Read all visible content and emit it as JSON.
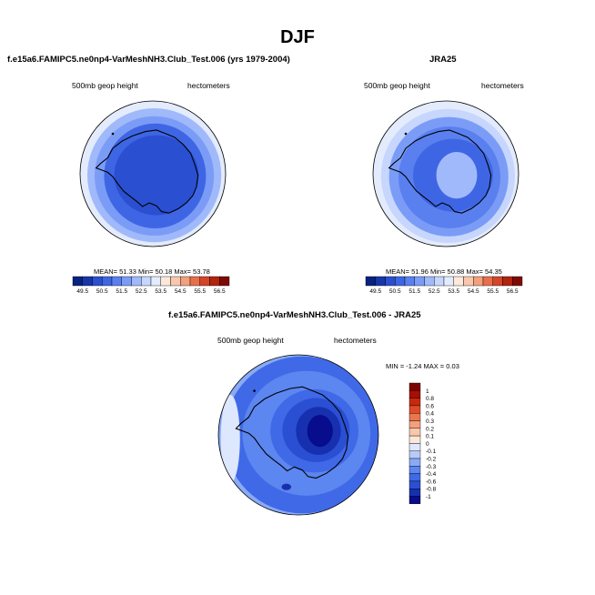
{
  "figure": {
    "title": "DJF"
  },
  "colors": {
    "abs_palette": [
      "#08227f",
      "#1736a8",
      "#2a4fd0",
      "#3e66e4",
      "#5a80ef",
      "#7b9cf6",
      "#a0b9fa",
      "#c6d6fc",
      "#e3ebfd",
      "#fde8da",
      "#f8c8ae",
      "#f2a07e",
      "#e96f4c",
      "#d4452a",
      "#b1240f",
      "#7f0a04"
    ],
    "diff_palette": [
      "#070d8c",
      "#1730b0",
      "#2a4fd3",
      "#3f69e6",
      "#5c86f0",
      "#8aaaf6",
      "#b7cbfa",
      "#dde7fd",
      "#fde6d6",
      "#f9c7ab",
      "#f3a07d",
      "#eb7550",
      "#df4b27",
      "#c9280c",
      "#a80f04",
      "#7a0401"
    ],
    "coast": "#000000",
    "ocean_edge": "#000000"
  },
  "chart_data": [
    {
      "type": "heatmap",
      "panel_title": "f.e15a6.FAMIPC5.ne0np4-VarMeshNH3.Club_Test.006 (yrs 1979-2004)",
      "left_label": "500mb geop height",
      "right_label": "hectometers",
      "stats": "MEAN=  51.33  Min=  50.18  Max=  53.78",
      "colorbar_levels": [
        "49.5",
        "50.5",
        "51.5",
        "52.5",
        "53.5",
        "54.5",
        "55.5",
        "56.5"
      ],
      "projection": "south polar stereographic",
      "mean": 51.33,
      "min": 50.18,
      "max": 53.78
    },
    {
      "type": "heatmap",
      "panel_title": "JRA25",
      "left_label": "500mb geop height",
      "right_label": "hectometers",
      "stats": "MEAN=  51.96  Min=  50.88  Max=  54.35",
      "colorbar_levels": [
        "49.5",
        "50.5",
        "51.5",
        "52.5",
        "53.5",
        "54.5",
        "55.5",
        "56.5"
      ],
      "projection": "south polar stereographic",
      "mean": 51.96,
      "min": 50.88,
      "max": 54.35
    },
    {
      "type": "heatmap",
      "panel_title": "f.e15a6.FAMIPC5.ne0np4-VarMeshNH3.Club_Test.006 - JRA25",
      "left_label": "500mb geop height",
      "right_label": "hectometers",
      "stats": "MIN =  -1.24 MAX =   0.03",
      "colorbar_levels": [
        "1",
        "0.8",
        "0.6",
        "0.4",
        "0.3",
        "0.2",
        "0.1",
        "0",
        "-0.1",
        "-0.2",
        "-0.3",
        "-0.4",
        "-0.6",
        "-0.8",
        "-1"
      ],
      "projection": "south polar stereographic",
      "min": -1.24,
      "max": 0.03
    }
  ]
}
